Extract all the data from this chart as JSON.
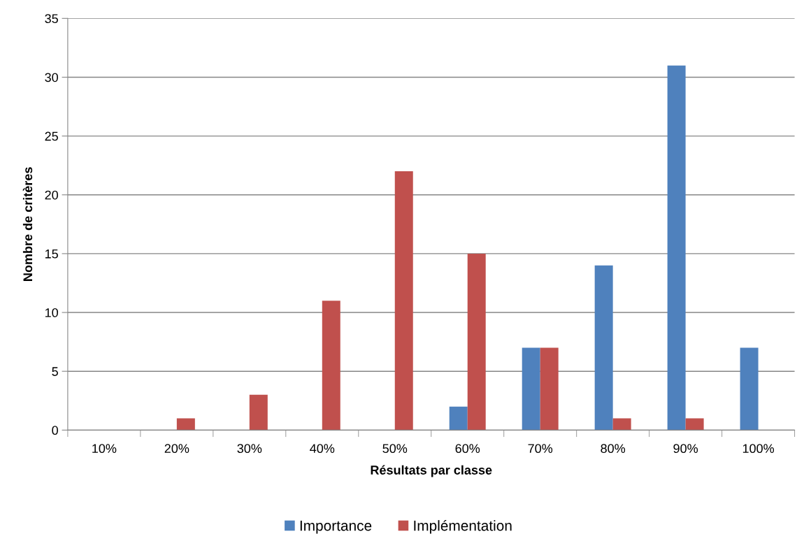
{
  "chart_data": {
    "type": "bar",
    "categories": [
      "10%",
      "20%",
      "30%",
      "40%",
      "50%",
      "60%",
      "70%",
      "80%",
      "90%",
      "100%"
    ],
    "series": [
      {
        "name": "Importance",
        "color": "#4f81bd",
        "values": [
          0,
          0,
          0,
          0,
          0,
          2,
          7,
          14,
          31,
          7
        ]
      },
      {
        "name": "Implémentation",
        "color": "#c0504d",
        "values": [
          0,
          1,
          3,
          11,
          22,
          15,
          7,
          1,
          1,
          0
        ]
      }
    ],
    "xlabel": "Résultats par classe",
    "ylabel": "Nombre de critères",
    "ylim": [
      0,
      35
    ],
    "yticks": [
      0,
      5,
      10,
      15,
      20,
      25,
      30,
      35
    ],
    "grid": "y",
    "legend": "bottom"
  }
}
